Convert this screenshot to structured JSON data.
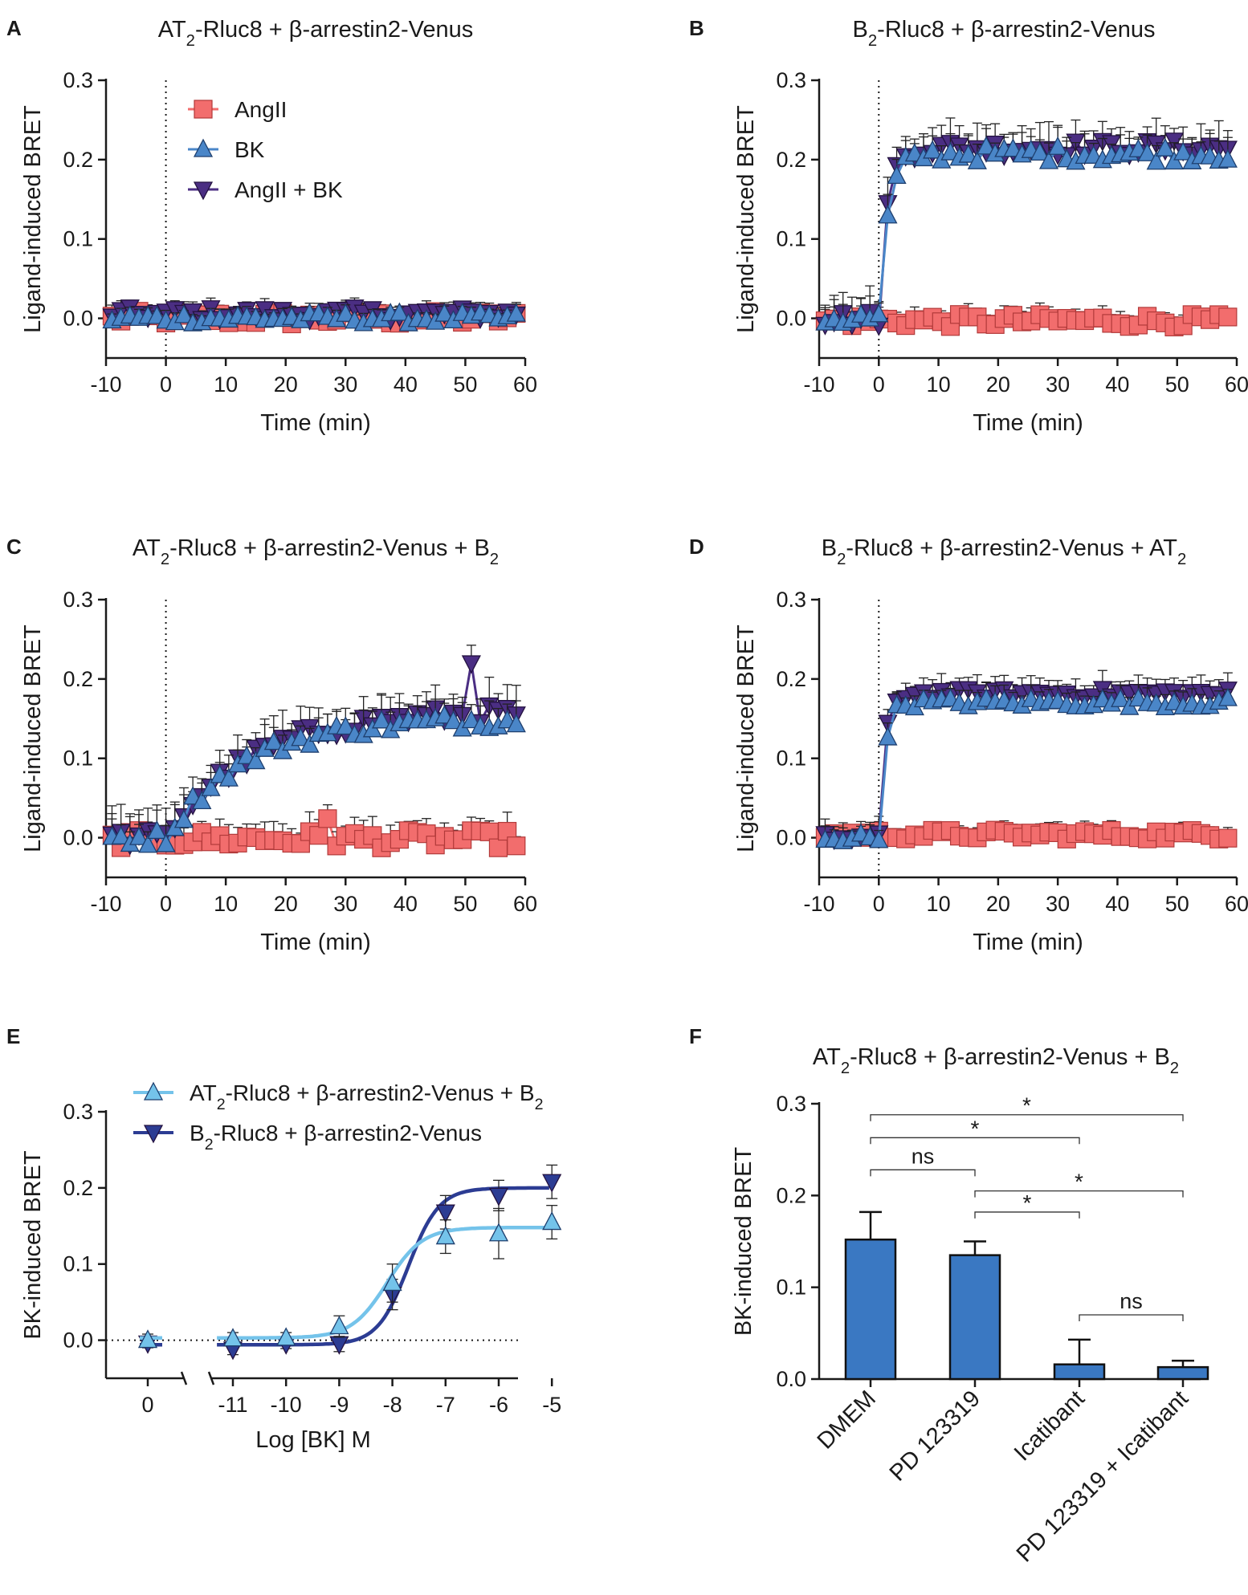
{
  "colors": {
    "angii": "#f26d6d",
    "bk": "#4a86c8",
    "angii_bk": "#4b2e83",
    "e_at2": "#74c3ea",
    "e_b2": "#2c3c93",
    "bar": "#3a78c2",
    "axis": "#1a1a1a"
  },
  "chart_data": [
    {
      "panel": "A",
      "type": "line",
      "title": "AT2-Rluc8 + β-arrestin2-Venus",
      "xlabel": "Time (min)",
      "ylabel": "Ligand-induced BRET",
      "xlim": [
        -10,
        60
      ],
      "ylim": [
        -0.05,
        0.3
      ],
      "xticks": [
        "-10",
        "0",
        "10",
        "20",
        "30",
        "40",
        "50",
        "60"
      ],
      "yticks": [
        "0.0",
        "0.1",
        "0.2",
        "0.3"
      ],
      "legend": [
        "AngII",
        "BK",
        "AngII + BK"
      ],
      "legend_position": "top-left",
      "series": [
        {
          "name": "AngII",
          "level": 0.0,
          "tau": 1,
          "noise": 0.009,
          "err": 0.012
        },
        {
          "name": "BK",
          "level": 0.0,
          "tau": 1,
          "noise": 0.007,
          "err": 0.01
        },
        {
          "name": "AngII + BK",
          "level": 0.006,
          "tau": 1,
          "noise": 0.008,
          "err": 0.01
        }
      ]
    },
    {
      "panel": "B",
      "type": "line",
      "title": "B2-Rluc8 + β-arrestin2-Venus",
      "xlabel": "Time (min)",
      "ylabel": "Ligand-induced BRET",
      "xlim": [
        -10,
        60
      ],
      "ylim": [
        -0.05,
        0.3
      ],
      "xticks": [
        "-10",
        "0",
        "10",
        "20",
        "30",
        "40",
        "50",
        "60"
      ],
      "yticks": [
        "0.0",
        "0.1",
        "0.2",
        "0.3"
      ],
      "series": [
        {
          "name": "AngII",
          "level": -0.003,
          "tau": 1,
          "noise": 0.008,
          "err": 0.012
        },
        {
          "name": "BK",
          "level": 0.207,
          "tau": 1.6,
          "noise": 0.01,
          "err": 0.022
        },
        {
          "name": "AngII + BK",
          "level": 0.215,
          "tau": 1.4,
          "noise": 0.01,
          "err": 0.025
        }
      ]
    },
    {
      "panel": "C",
      "type": "line",
      "title": "AT2-Rluc8 + β-arrestin2-Venus + B2",
      "xlabel": "Time (min)",
      "ylabel": "Ligand-induced BRET",
      "xlim": [
        -10,
        60
      ],
      "ylim": [
        -0.05,
        0.3
      ],
      "xticks": [
        "-10",
        "0",
        "10",
        "20",
        "30",
        "40",
        "50",
        "60"
      ],
      "yticks": [
        "0.0",
        "0.1",
        "0.2",
        "0.3"
      ],
      "series": [
        {
          "name": "AngII",
          "level": -0.002,
          "tau": 1,
          "noise": 0.011,
          "err": 0.018
        },
        {
          "name": "BK",
          "level": 0.15,
          "tau": 13,
          "noise": 0.01,
          "err": 0.025
        },
        {
          "name": "AngII + BK",
          "level": 0.16,
          "tau": 14,
          "noise": 0.011,
          "err": 0.027
        }
      ]
    },
    {
      "panel": "D",
      "type": "line",
      "title": "B2-Rluc8 + β-arrestin2-Venus + AT2",
      "xlabel": "Time (min)",
      "ylabel": "Ligand-induced BRET",
      "xlim": [
        -10,
        60
      ],
      "ylim": [
        -0.05,
        0.3
      ],
      "xticks": [
        "-10",
        "0",
        "10",
        "20",
        "30",
        "40",
        "50",
        "60"
      ],
      "yticks": [
        "0.0",
        "0.1",
        "0.2",
        "0.3"
      ],
      "series": [
        {
          "name": "AngII",
          "level": 0.004,
          "tau": 1,
          "noise": 0.006,
          "err": 0.01
        },
        {
          "name": "BK",
          "level": 0.17,
          "tau": 1.0,
          "noise": 0.006,
          "err": 0.015
        },
        {
          "name": "AngII + BK",
          "level": 0.182,
          "tau": 1.0,
          "noise": 0.006,
          "err": 0.017
        }
      ]
    },
    {
      "panel": "E",
      "type": "line",
      "title": "",
      "xlabel": "Log [BK] M",
      "ylabel": "BK-induced BRET",
      "ylim": [
        -0.05,
        0.3
      ],
      "xlim": [
        -11.5,
        -5
      ],
      "xticks": [
        "-11",
        "-10",
        "-9",
        "-8",
        "-7",
        "-6",
        "-5"
      ],
      "zero_tick": "0",
      "yticks": [
        "0.0",
        "0.1",
        "0.2",
        "0.3"
      ],
      "legend": [
        "AT2-Rluc8 + β-arrestin2-Venus + B2",
        "B2-Rluc8 + β-arrestin2-Venus"
      ],
      "series": [
        {
          "name": "AT2-Rluc8 + β-arrestin2-Venus + B2",
          "x": [
            0,
            -11,
            -10,
            -9,
            -8,
            -7,
            -6,
            -5
          ],
          "y": [
            0.0,
            0.002,
            0.003,
            0.018,
            0.075,
            0.136,
            0.14,
            0.155
          ],
          "err": [
            0.008,
            0.008,
            0.007,
            0.014,
            0.025,
            0.022,
            0.033,
            0.022
          ],
          "bottom": 0.003,
          "top": 0.148,
          "logEC50": -8.1,
          "hill": 1.3
        },
        {
          "name": "B2-Rluc8 + β-arrestin2-Venus",
          "x": [
            0,
            -11,
            -10,
            -9,
            -8,
            -7,
            -6,
            -5
          ],
          "y": [
            -0.004,
            -0.012,
            -0.005,
            -0.005,
            0.06,
            0.168,
            0.19,
            0.208
          ],
          "err": [
            0.006,
            0.007,
            0.006,
            0.01,
            0.02,
            0.022,
            0.02,
            0.022
          ],
          "bottom": -0.006,
          "top": 0.2,
          "logEC50": -7.7,
          "hill": 1.5
        }
      ]
    },
    {
      "panel": "F",
      "type": "bar",
      "title": "AT2-Rluc8 + β-arrestin2-Venus + B2",
      "xlabel": "",
      "ylabel": "BK-induced BRET",
      "ylim": [
        0,
        0.3
      ],
      "yticks": [
        "0.0",
        "0.1",
        "0.2",
        "0.3"
      ],
      "categories": [
        "DMEM",
        "PD 123319",
        "Icatibant",
        "PD 123319 + Icatibant"
      ],
      "values": [
        0.152,
        0.135,
        0.016,
        0.013
      ],
      "errors": [
        0.03,
        0.015,
        0.027,
        0.007
      ],
      "comparisons": [
        {
          "from": 0,
          "to": 3,
          "label": "*",
          "y": 0.288
        },
        {
          "from": 0,
          "to": 2,
          "label": "*",
          "y": 0.263
        },
        {
          "from": 0,
          "to": 1,
          "label": "ns",
          "y": 0.228
        },
        {
          "from": 1,
          "to": 3,
          "label": "*",
          "y": 0.205
        },
        {
          "from": 1,
          "to": 2,
          "label": "*",
          "y": 0.182
        },
        {
          "from": 2,
          "to": 3,
          "label": "ns",
          "y": 0.07
        }
      ]
    }
  ],
  "panel_letters": [
    "A",
    "B",
    "C",
    "D",
    "E",
    "F"
  ],
  "titles": {
    "A": {
      "main": "AT",
      "sub": "2",
      "rest": "-Rluc8 + β-arrestin2-Venus"
    },
    "B": {
      "main": "B",
      "sub": "2",
      "rest": "-Rluc8 + β-arrestin2-Venus"
    },
    "C": {
      "main": "AT",
      "sub": "2",
      "rest": "-Rluc8 + β-arrestin2-Venus + B",
      "sub2": "2"
    },
    "D": {
      "main": "B",
      "sub": "2",
      "rest": "-Rluc8 + β-arrestin2-Venus + AT",
      "sub2": "2"
    },
    "F": {
      "main": "AT",
      "sub": "2",
      "rest": "-Rluc8 + β-arrestin2-Venus + B",
      "sub2": "2"
    }
  },
  "legendE": [
    {
      "main": "AT",
      "sub": "2",
      "rest": "-Rluc8 + β-arrestin2-Venus + B",
      "sub2": "2"
    },
    {
      "main": "B",
      "sub": "2",
      "rest": "-Rluc8 + β-arrestin2-Venus"
    }
  ]
}
